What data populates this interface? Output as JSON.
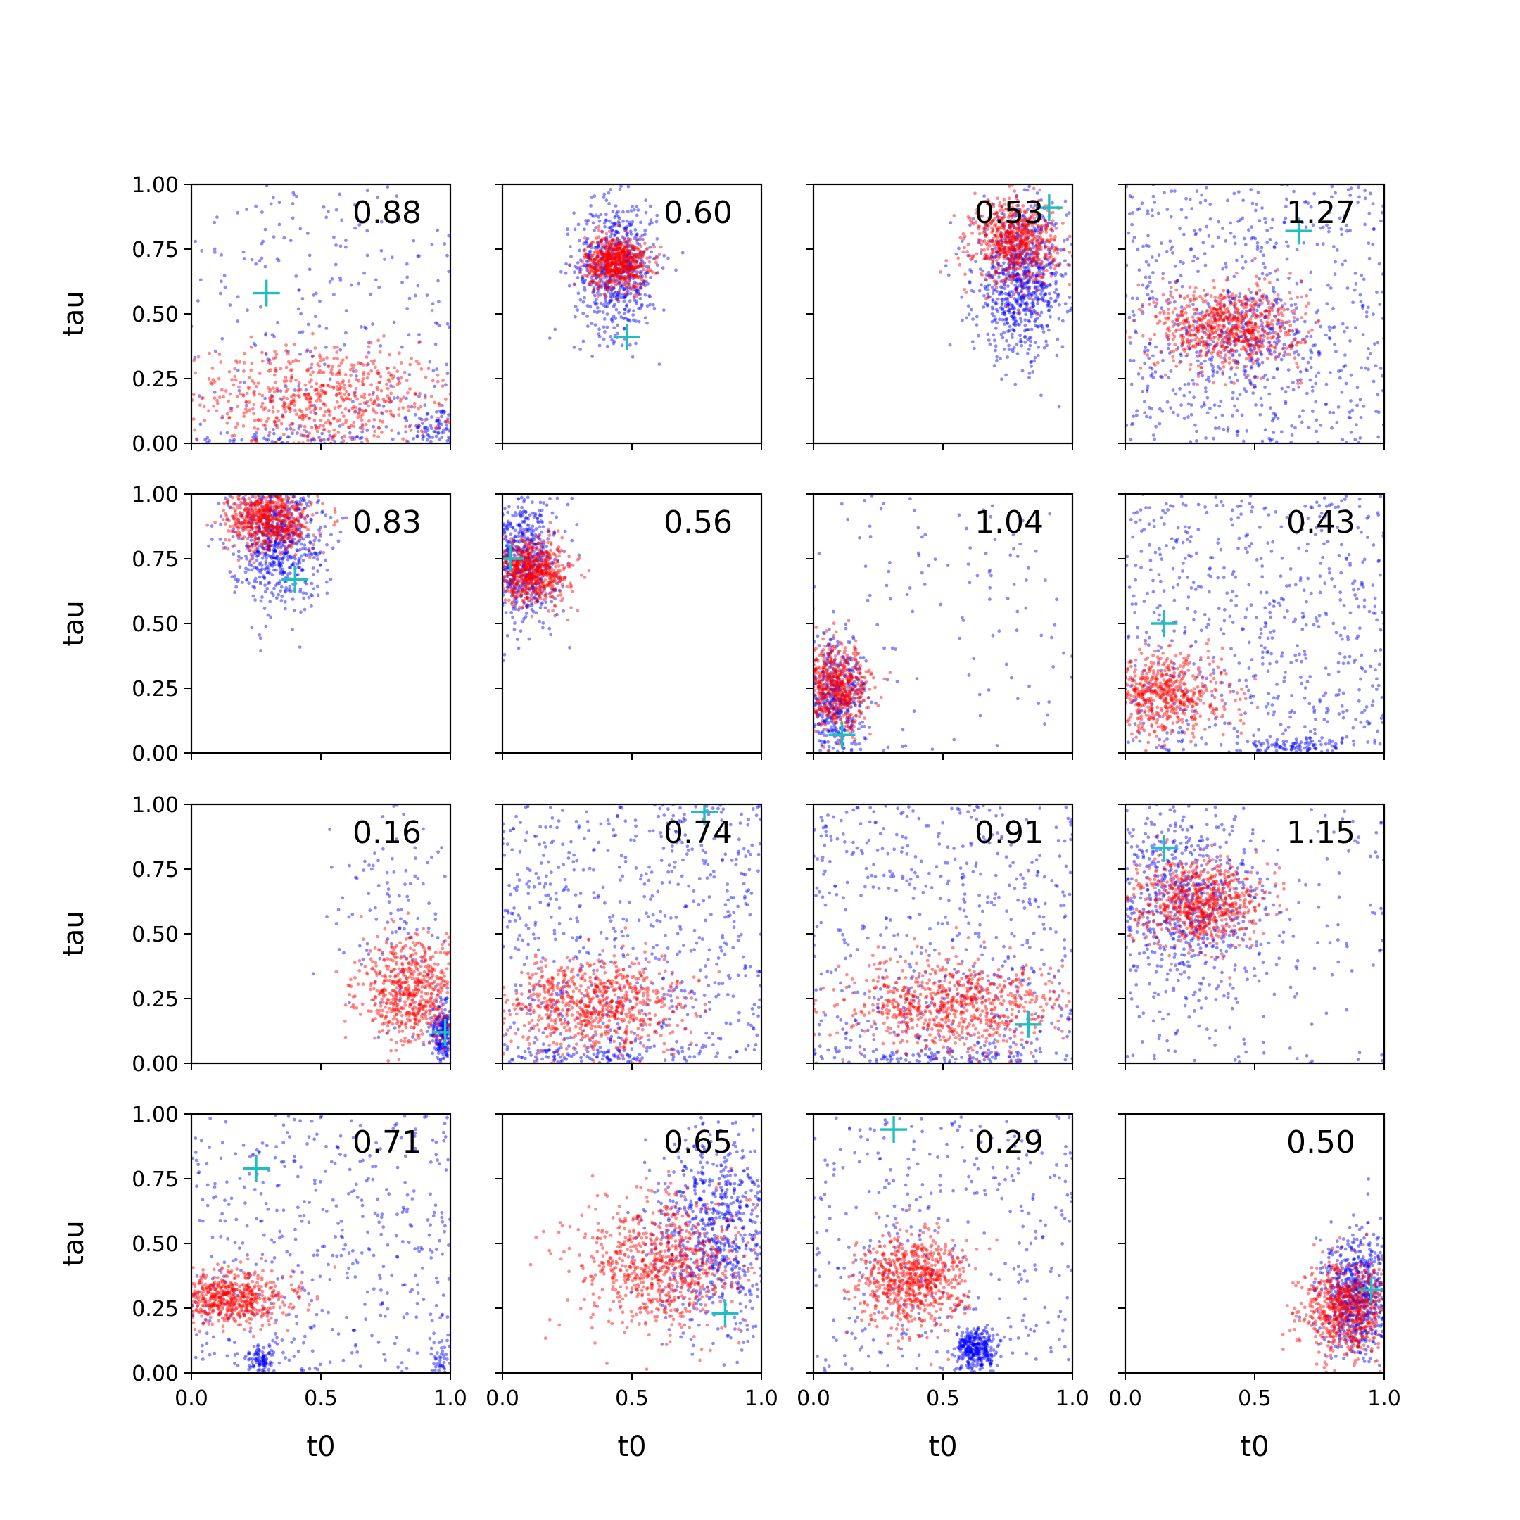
{
  "chart_data": {
    "type": "scatter",
    "layout": "4x4 grid of scatter panels with shared axes",
    "xlabel": "t0",
    "ylabel": "tau",
    "xlim": [
      0.0,
      1.0
    ],
    "ylim": [
      0.0,
      1.0
    ],
    "xticks": [
      "0.0",
      "0.5",
      "1.0"
    ],
    "yticks": [
      "0.00",
      "0.25",
      "0.50",
      "0.75",
      "1.00"
    ],
    "series_colors": {
      "blue": "#0000ff",
      "red": "#ff0000",
      "marker": "#1fbfbf"
    },
    "panels": [
      {
        "value": "0.88",
        "marker": [
          0.29,
          0.58
        ],
        "red": {
          "cx": 0.5,
          "cy": 0.17,
          "sx": 0.26,
          "sy": 0.1,
          "n": 700
        },
        "blue": [
          {
            "cx": 0.5,
            "cy": 0.5,
            "sx": 0.4,
            "sy": 0.4,
            "n": 260,
            "uniform": true
          },
          {
            "cx": 0.95,
            "cy": 0.05,
            "sx": 0.05,
            "sy": 0.05,
            "n": 90
          },
          {
            "cx": 0.3,
            "cy": 0.02,
            "sx": 0.2,
            "sy": 0.02,
            "n": 70
          }
        ]
      },
      {
        "value": "0.60",
        "marker": [
          0.48,
          0.41
        ],
        "red": {
          "cx": 0.44,
          "cy": 0.7,
          "sx": 0.06,
          "sy": 0.05,
          "n": 650
        },
        "blue": [
          {
            "cx": 0.44,
            "cy": 0.68,
            "sx": 0.08,
            "sy": 0.13,
            "n": 650
          }
        ]
      },
      {
        "value": "0.53",
        "marker": [
          0.91,
          0.91
        ],
        "red": {
          "cx": 0.78,
          "cy": 0.78,
          "sx": 0.08,
          "sy": 0.08,
          "n": 700
        },
        "blue": [
          {
            "cx": 0.8,
            "cy": 0.62,
            "sx": 0.09,
            "sy": 0.14,
            "n": 800
          }
        ]
      },
      {
        "value": "1.27",
        "marker": [
          0.67,
          0.82
        ],
        "red": {
          "cx": 0.4,
          "cy": 0.45,
          "sx": 0.14,
          "sy": 0.08,
          "n": 750
        },
        "blue": [
          {
            "cx": 0.5,
            "cy": 0.5,
            "sx": 0.4,
            "sy": 0.4,
            "n": 600,
            "uniform": true
          },
          {
            "cx": 0.45,
            "cy": 0.4,
            "sx": 0.14,
            "sy": 0.1,
            "n": 250
          }
        ]
      },
      {
        "value": "0.83",
        "marker": [
          0.4,
          0.67
        ],
        "red": {
          "cx": 0.3,
          "cy": 0.9,
          "sx": 0.08,
          "sy": 0.06,
          "n": 650
        },
        "blue": [
          {
            "cx": 0.33,
            "cy": 0.82,
            "sx": 0.09,
            "sy": 0.12,
            "n": 650
          }
        ]
      },
      {
        "value": "0.56",
        "marker": [
          0.03,
          0.75
        ],
        "red": {
          "cx": 0.12,
          "cy": 0.7,
          "sx": 0.07,
          "sy": 0.06,
          "n": 650
        },
        "blue": [
          {
            "cx": 0.07,
            "cy": 0.75,
            "sx": 0.07,
            "sy": 0.12,
            "n": 650
          }
        ]
      },
      {
        "value": "1.04",
        "marker": [
          0.11,
          0.07
        ],
        "red": {
          "cx": 0.08,
          "cy": 0.25,
          "sx": 0.07,
          "sy": 0.08,
          "n": 650
        },
        "blue": [
          {
            "cx": 0.08,
            "cy": 0.2,
            "sx": 0.06,
            "sy": 0.12,
            "n": 450
          },
          {
            "cx": 0.5,
            "cy": 0.5,
            "sx": 0.4,
            "sy": 0.4,
            "n": 120,
            "uniform": true
          }
        ]
      },
      {
        "value": "0.43",
        "marker": [
          0.15,
          0.5
        ],
        "red": {
          "cx": 0.15,
          "cy": 0.23,
          "sx": 0.12,
          "sy": 0.08,
          "n": 650
        },
        "blue": [
          {
            "cx": 0.5,
            "cy": 0.5,
            "sx": 0.4,
            "sy": 0.4,
            "n": 600,
            "uniform": true
          },
          {
            "cx": 0.65,
            "cy": 0.03,
            "sx": 0.1,
            "sy": 0.02,
            "n": 100
          }
        ]
      },
      {
        "value": "0.16",
        "marker": [
          0.98,
          0.12
        ],
        "red": {
          "cx": 0.85,
          "cy": 0.28,
          "sx": 0.1,
          "sy": 0.1,
          "n": 650
        },
        "blue": [
          {
            "cx": 0.97,
            "cy": 0.12,
            "sx": 0.02,
            "sy": 0.06,
            "n": 220
          },
          {
            "cx": 0.8,
            "cy": 0.55,
            "sx": 0.15,
            "sy": 0.25,
            "n": 120
          }
        ]
      },
      {
        "value": "0.74",
        "marker": [
          0.78,
          0.97
        ],
        "red": {
          "cx": 0.35,
          "cy": 0.23,
          "sx": 0.18,
          "sy": 0.09,
          "n": 800
        },
        "blue": [
          {
            "cx": 0.5,
            "cy": 0.5,
            "sx": 0.4,
            "sy": 0.4,
            "n": 650,
            "uniform": true
          },
          {
            "cx": 0.35,
            "cy": 0.03,
            "sx": 0.2,
            "sy": 0.02,
            "n": 100
          }
        ]
      },
      {
        "value": "0.91",
        "marker": [
          0.83,
          0.15
        ],
        "red": {
          "cx": 0.55,
          "cy": 0.22,
          "sx": 0.22,
          "sy": 0.09,
          "n": 800
        },
        "blue": [
          {
            "cx": 0.5,
            "cy": 0.5,
            "sx": 0.4,
            "sy": 0.4,
            "n": 550,
            "uniform": true
          },
          {
            "cx": 0.45,
            "cy": 0.02,
            "sx": 0.35,
            "sy": 0.02,
            "n": 120
          }
        ]
      },
      {
        "value": "1.15",
        "marker": [
          0.15,
          0.83
        ],
        "red": {
          "cx": 0.28,
          "cy": 0.62,
          "sx": 0.12,
          "sy": 0.08,
          "n": 750
        },
        "blue": [
          {
            "cx": 0.25,
            "cy": 0.62,
            "sx": 0.15,
            "sy": 0.18,
            "n": 600
          },
          {
            "cx": 0.5,
            "cy": 0.5,
            "sx": 0.4,
            "sy": 0.4,
            "n": 200,
            "uniform": true
          }
        ]
      },
      {
        "value": "0.71",
        "marker": [
          0.25,
          0.79
        ],
        "red": {
          "cx": 0.15,
          "cy": 0.29,
          "sx": 0.12,
          "sy": 0.05,
          "n": 650
        },
        "blue": [
          {
            "cx": 0.5,
            "cy": 0.5,
            "sx": 0.4,
            "sy": 0.4,
            "n": 450,
            "uniform": true
          },
          {
            "cx": 0.27,
            "cy": 0.05,
            "sx": 0.03,
            "sy": 0.03,
            "n": 90
          },
          {
            "cx": 0.97,
            "cy": 0.05,
            "sx": 0.02,
            "sy": 0.04,
            "n": 40
          }
        ]
      },
      {
        "value": "0.65",
        "marker": [
          0.86,
          0.23
        ],
        "red": {
          "cx": 0.6,
          "cy": 0.42,
          "sx": 0.16,
          "sy": 0.13,
          "n": 800
        },
        "blue": [
          {
            "cx": 0.82,
            "cy": 0.55,
            "sx": 0.12,
            "sy": 0.2,
            "n": 750
          }
        ]
      },
      {
        "value": "0.29",
        "marker": [
          0.31,
          0.94
        ],
        "red": {
          "cx": 0.38,
          "cy": 0.35,
          "sx": 0.1,
          "sy": 0.09,
          "n": 750
        },
        "blue": [
          {
            "cx": 0.5,
            "cy": 0.5,
            "sx": 0.4,
            "sy": 0.4,
            "n": 350,
            "uniform": true
          },
          {
            "cx": 0.63,
            "cy": 0.09,
            "sx": 0.04,
            "sy": 0.04,
            "n": 330
          }
        ]
      },
      {
        "value": "0.50",
        "marker": [
          0.95,
          0.32
        ],
        "red": {
          "cx": 0.85,
          "cy": 0.25,
          "sx": 0.08,
          "sy": 0.09,
          "n": 700
        },
        "blue": [
          {
            "cx": 0.9,
            "cy": 0.3,
            "sx": 0.07,
            "sy": 0.12,
            "n": 700
          }
        ]
      }
    ]
  }
}
